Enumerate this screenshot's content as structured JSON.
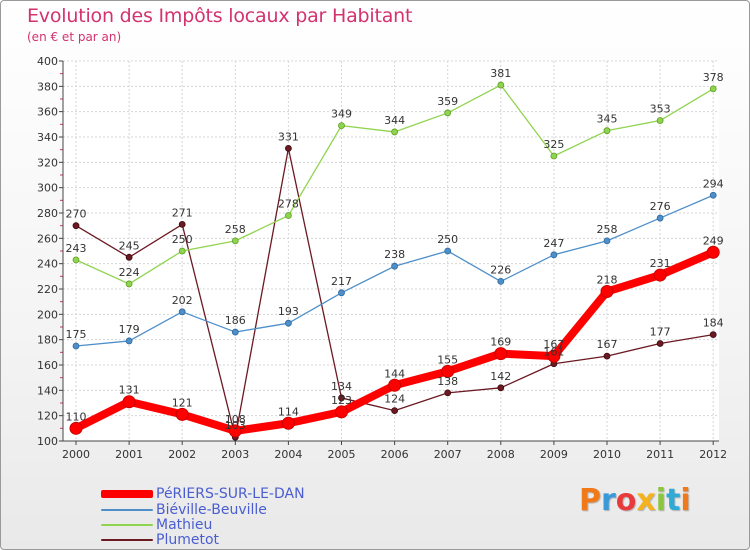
{
  "title": "Evolution des Impôts locaux par Habitant",
  "subtitle": "(en € et par an)",
  "brand": "Proxiti",
  "chart_data": {
    "type": "line",
    "title": "Evolution des Impôts locaux par Habitant",
    "subtitle": "(en € et par an)",
    "xlabel": "",
    "ylabel": "",
    "x": [
      "2000",
      "2001",
      "2002",
      "2003",
      "2004",
      "2005",
      "2006",
      "2007",
      "2008",
      "2009",
      "2010",
      "2011",
      "2012"
    ],
    "ylim": [
      100,
      400
    ],
    "yticks": [
      100,
      120,
      140,
      160,
      180,
      200,
      220,
      240,
      260,
      280,
      300,
      320,
      340,
      360,
      380,
      400
    ],
    "grid": true,
    "legend_position": "bottom-left",
    "series": [
      {
        "name": "PéRIERS-SUR-LE-DAN",
        "color": "#ff0000",
        "values": [
          110,
          131,
          121,
          108,
          114,
          123,
          144,
          155,
          169,
          167,
          218,
          231,
          249
        ],
        "labels": [
          "110",
          "131",
          "121",
          "108",
          "114",
          "123",
          "144",
          "155",
          "169",
          "167",
          "218",
          "231",
          "249"
        ]
      },
      {
        "name": "Biéville-Beuville",
        "color": "#4e8fc9",
        "values": [
          175,
          179,
          202,
          186,
          193,
          217,
          238,
          250,
          226,
          247,
          258,
          276,
          294
        ],
        "labels": [
          "175",
          "179",
          "202",
          "186",
          "193",
          "217",
          "238",
          "250",
          "226",
          "247",
          "258",
          "276",
          "294"
        ]
      },
      {
        "name": "Mathieu",
        "color": "#8fd44e",
        "values": [
          243,
          224,
          250,
          258,
          278,
          349,
          344,
          359,
          381,
          325,
          345,
          353,
          378
        ],
        "labels": [
          "243",
          "224",
          "250",
          "258",
          "278",
          "349",
          "344",
          "359",
          "381",
          "325",
          "345",
          "353",
          "378"
        ]
      },
      {
        "name": "Plumetot",
        "color": "#6b1a22",
        "values": [
          270,
          245,
          271,
          103,
          331,
          134,
          124,
          138,
          142,
          161,
          167,
          177,
          184
        ],
        "labels": [
          "270",
          "245",
          "271",
          "103",
          "331",
          "134",
          "124",
          "138",
          "142",
          "161",
          "167",
          "177",
          "184"
        ]
      }
    ]
  }
}
